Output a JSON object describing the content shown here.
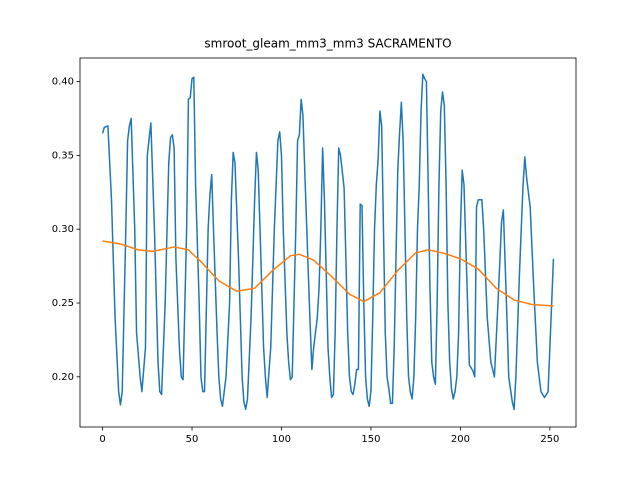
{
  "chart_data": {
    "type": "line",
    "title": "smroot_gleam_mm3_mm3 SACRAMENTO",
    "xlim": [
      -12.6,
      264.6
    ],
    "xticks": [
      0,
      50,
      100,
      150,
      200,
      250
    ],
    "ylim": [
      0.166,
      0.416
    ],
    "yticks": [
      {
        "value": 0.2,
        "label": "0.20"
      },
      0.25,
      {
        "value": 0.3,
        "label": "0.30"
      },
      0.35,
      {
        "value": 0.4,
        "label": "0.40"
      }
    ],
    "series": [
      {
        "color": "#1f77b4",
        "x": [
          0,
          1,
          3,
          5,
          7,
          9,
          10,
          11,
          13,
          14,
          15,
          16,
          18,
          19,
          21,
          22,
          24,
          25,
          27,
          29,
          31,
          32,
          33,
          35,
          37,
          38,
          39,
          40,
          41,
          43,
          44,
          45,
          47,
          48,
          49,
          50,
          51,
          52,
          54,
          55,
          56,
          57,
          59,
          60,
          61,
          62,
          64,
          65,
          66,
          67,
          69,
          71,
          72,
          73,
          74,
          76,
          78,
          79,
          80,
          81,
          83,
          85,
          86,
          87,
          88,
          90,
          91,
          92,
          94,
          96,
          97,
          98,
          99,
          100,
          101,
          103,
          104,
          105,
          106,
          107,
          108,
          109,
          110,
          111,
          112,
          113,
          115,
          116,
          117,
          118,
          120,
          121,
          122,
          123,
          124,
          125,
          126,
          127,
          128,
          129,
          130,
          131,
          132,
          133,
          135,
          136,
          137,
          138,
          139,
          140,
          141,
          142,
          143,
          144,
          145,
          146,
          147,
          148,
          149,
          150,
          151,
          152,
          153,
          154,
          155,
          156,
          157,
          158,
          159,
          160,
          161,
          162,
          163,
          164,
          165,
          166,
          167,
          168,
          169,
          170,
          171,
          172,
          173,
          174,
          175,
          176,
          177,
          178,
          179,
          180,
          181,
          182,
          183,
          184,
          185,
          186,
          187,
          188,
          189,
          190,
          191,
          192,
          193,
          194,
          195,
          196,
          197,
          198,
          199,
          200,
          201,
          202,
          204,
          205,
          207,
          208,
          209,
          210,
          212,
          213,
          215,
          217,
          218,
          219,
          221,
          223,
          224,
          226,
          227,
          229,
          230,
          231,
          233,
          235,
          236,
          237,
          239,
          241,
          243,
          245,
          247,
          249,
          250,
          252
        ],
        "values": [
          0.365,
          0.369,
          0.37,
          0.32,
          0.24,
          0.19,
          0.181,
          0.19,
          0.3,
          0.36,
          0.37,
          0.375,
          0.3,
          0.23,
          0.2,
          0.19,
          0.22,
          0.35,
          0.372,
          0.3,
          0.21,
          0.19,
          0.188,
          0.25,
          0.345,
          0.362,
          0.364,
          0.355,
          0.28,
          0.218,
          0.2,
          0.198,
          0.3,
          0.388,
          0.389,
          0.402,
          0.403,
          0.33,
          0.25,
          0.2,
          0.19,
          0.19,
          0.3,
          0.323,
          0.337,
          0.3,
          0.23,
          0.2,
          0.185,
          0.18,
          0.2,
          0.25,
          0.32,
          0.352,
          0.345,
          0.28,
          0.2,
          0.183,
          0.178,
          0.185,
          0.24,
          0.32,
          0.352,
          0.34,
          0.3,
          0.22,
          0.2,
          0.186,
          0.22,
          0.3,
          0.33,
          0.36,
          0.366,
          0.35,
          0.3,
          0.23,
          0.21,
          0.198,
          0.2,
          0.25,
          0.3,
          0.36,
          0.364,
          0.388,
          0.377,
          0.34,
          0.27,
          0.236,
          0.205,
          0.22,
          0.24,
          0.26,
          0.3,
          0.355,
          0.32,
          0.27,
          0.22,
          0.2,
          0.186,
          0.188,
          0.23,
          0.3,
          0.355,
          0.35,
          0.328,
          0.28,
          0.23,
          0.2,
          0.19,
          0.188,
          0.195,
          0.205,
          0.205,
          0.317,
          0.316,
          0.25,
          0.2,
          0.185,
          0.18,
          0.19,
          0.24,
          0.3,
          0.33,
          0.347,
          0.38,
          0.37,
          0.3,
          0.23,
          0.2,
          0.192,
          0.182,
          0.182,
          0.22,
          0.28,
          0.34,
          0.365,
          0.386,
          0.36,
          0.3,
          0.24,
          0.2,
          0.19,
          0.185,
          0.2,
          0.24,
          0.3,
          0.33,
          0.38,
          0.405,
          0.402,
          0.4,
          0.33,
          0.26,
          0.21,
          0.2,
          0.195,
          0.25,
          0.33,
          0.38,
          0.393,
          0.384,
          0.33,
          0.25,
          0.21,
          0.192,
          0.185,
          0.19,
          0.2,
          0.23,
          0.3,
          0.34,
          0.33,
          0.25,
          0.208,
          0.204,
          0.2,
          0.315,
          0.32,
          0.32,
          0.3,
          0.24,
          0.21,
          0.205,
          0.2,
          0.25,
          0.305,
          0.313,
          0.24,
          0.2,
          0.183,
          0.178,
          0.2,
          0.27,
          0.33,
          0.349,
          0.335,
          0.315,
          0.26,
          0.21,
          0.19,
          0.186,
          0.19,
          0.22,
          0.28
        ]
      },
      {
        "color": "#ff7f0e",
        "x": [
          0,
          10,
          20,
          28,
          40,
          48,
          55,
          65,
          75,
          85,
          95,
          105,
          110,
          118,
          128,
          138,
          146,
          155,
          165,
          175,
          182,
          190,
          200,
          210,
          220,
          230,
          240,
          252
        ],
        "values": [
          0.292,
          0.29,
          0.286,
          0.285,
          0.288,
          0.286,
          0.278,
          0.265,
          0.258,
          0.26,
          0.272,
          0.282,
          0.283,
          0.279,
          0.268,
          0.256,
          0.251,
          0.257,
          0.272,
          0.284,
          0.286,
          0.284,
          0.28,
          0.273,
          0.26,
          0.252,
          0.249,
          0.248
        ]
      }
    ]
  }
}
